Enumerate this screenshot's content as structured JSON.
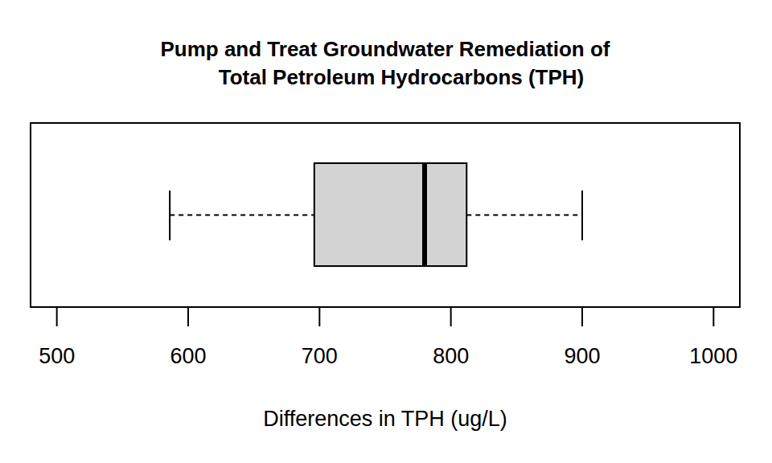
{
  "chart_data": {
    "type": "boxplot",
    "orientation": "horizontal",
    "title": "Pump and Treat Groundwater Remediation of\nTotal Petroleum Hydrocarbons (TPH)",
    "x_label": "Differences in TPH (ug/L)",
    "box": {
      "min": 586,
      "q1": 696,
      "median": 780,
      "q3": 812,
      "max": 900
    },
    "color": "#d3d3d3",
    "xlim": [
      480,
      1020
    ],
    "xticks": [
      500,
      600,
      700,
      800,
      900,
      1000
    ],
    "tick_labels": "x"
  }
}
